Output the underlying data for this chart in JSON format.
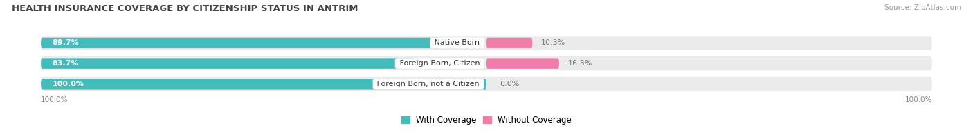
{
  "title": "HEALTH INSURANCE COVERAGE BY CITIZENSHIP STATUS IN ANTRIM",
  "source": "Source: ZipAtlas.com",
  "categories": [
    "Native Born",
    "Foreign Born, Citizen",
    "Foreign Born, not a Citizen"
  ],
  "with_coverage": [
    89.7,
    83.7,
    100.0
  ],
  "without_coverage": [
    10.3,
    16.3,
    0.0
  ],
  "color_with": "#45BCBC",
  "color_without": "#F07DAA",
  "bg_row": "#EBEBEB",
  "background_main": "#ffffff",
  "x_left_label": "100.0%",
  "x_right_label": "100.0%",
  "legend_with": "With Coverage",
  "legend_without": "Without Coverage",
  "title_fontsize": 9.5,
  "source_fontsize": 7.5,
  "bar_label_fontsize": 8,
  "cat_label_fontsize": 8,
  "axis_label_fontsize": 7.5
}
